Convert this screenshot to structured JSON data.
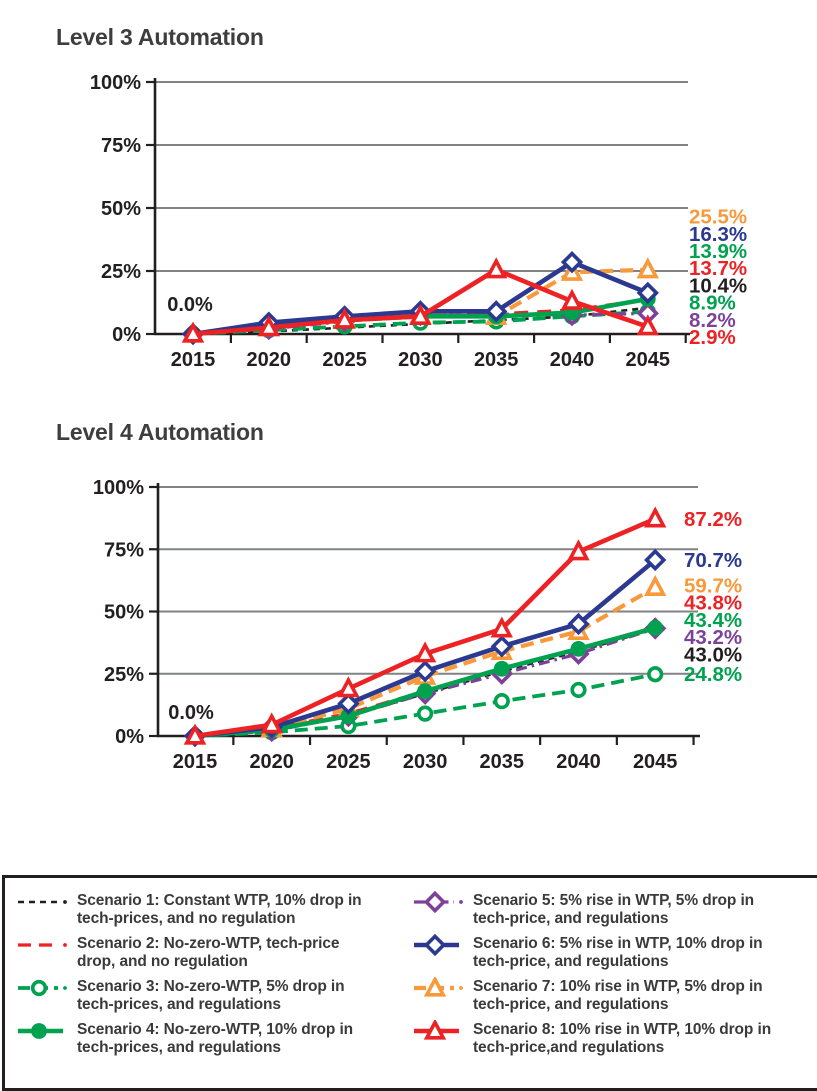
{
  "colors": {
    "black": "#231f20",
    "red": "#ed2224",
    "green": "#00a14f",
    "blue": "#2b3990",
    "purple": "#7d4199",
    "orange": "#f8993b",
    "grid": "#808285",
    "axis": "#231f20",
    "title": "#3e3e40"
  },
  "chart_data": [
    {
      "type": "line",
      "title": "Level 3 Automation",
      "x": [
        2015,
        2020,
        2025,
        2030,
        2035,
        2040,
        2045
      ],
      "ylim": [
        0,
        100
      ],
      "y_ticks": [
        "0%",
        "25%",
        "50%",
        "75%",
        "100%"
      ],
      "grid": "horizontal",
      "legend_position": "bottom-shared",
      "origin_label": "0.0%",
      "series": [
        {
          "name": "Scenario 1",
          "color": "black",
          "style": "dashed",
          "dash": "6 5",
          "marker": "none",
          "width": 2.6,
          "values": [
            0,
            1.0,
            2.5,
            4.0,
            5.5,
            7.0,
            10.4
          ],
          "end_label": "10.4%"
        },
        {
          "name": "Scenario 2",
          "color": "red",
          "style": "dashed",
          "dash": "14 9",
          "marker": "none",
          "width": 3.2,
          "values": [
            0,
            2.5,
            5.5,
            7.0,
            8.0,
            9.5,
            13.7
          ],
          "end_label": "13.7%"
        },
        {
          "name": "Scenario 3",
          "color": "green",
          "style": "dashed",
          "dash": "13 7",
          "marker": "circle-open",
          "width": 3.8,
          "values": [
            0,
            1.5,
            3.0,
            4.5,
            5.0,
            7.0,
            8.9
          ],
          "end_label": "8.9%"
        },
        {
          "name": "Scenario 5",
          "color": "purple",
          "style": "dash-dot",
          "dash": "11 5 2.5 5",
          "marker": "diamond-open",
          "width": 3.2,
          "values": [
            0,
            2.0,
            5.0,
            7.5,
            8.0,
            7.5,
            8.2
          ],
          "end_label": "8.2%"
        },
        {
          "name": "Scenario 7",
          "color": "orange",
          "style": "dashed",
          "dash": "13 7",
          "marker": "triangle-open",
          "width": 4.2,
          "values": [
            0,
            2.5,
            6.0,
            7.5,
            7.0,
            24.5,
            25.5
          ],
          "end_label": "25.5%"
        },
        {
          "name": "Scenario 4",
          "color": "green",
          "style": "solid",
          "dash": null,
          "marker": "circle-filled",
          "width": 4.6,
          "values": [
            0,
            3.5,
            5.5,
            7.0,
            7.0,
            8.5,
            13.9
          ],
          "end_label": "13.9%"
        },
        {
          "name": "Scenario 6",
          "color": "blue",
          "style": "solid",
          "dash": null,
          "marker": "diamond-open",
          "width": 4.6,
          "values": [
            0,
            4.5,
            7.0,
            9.0,
            9.0,
            28.5,
            16.3
          ],
          "end_label": "16.3%"
        },
        {
          "name": "Scenario 8",
          "color": "red",
          "style": "solid",
          "dash": null,
          "marker": "triangle-open",
          "width": 4.6,
          "values": [
            0,
            2.5,
            5.5,
            7.0,
            25.5,
            13.0,
            2.9
          ],
          "end_label": "2.9%"
        }
      ]
    },
    {
      "type": "line",
      "title": "Level 4 Automation",
      "x": [
        2015,
        2020,
        2025,
        2030,
        2035,
        2040,
        2045
      ],
      "ylim": [
        0,
        100
      ],
      "y_ticks": [
        "0%",
        "25%",
        "50%",
        "75%",
        "100%"
      ],
      "grid": "horizontal",
      "legend_position": "bottom-shared",
      "origin_label": "0.0%",
      "series": [
        {
          "name": "Scenario 1",
          "color": "black",
          "style": "dashed",
          "dash": "6 5",
          "marker": "none",
          "width": 2.6,
          "values": [
            0,
            2.0,
            8.0,
            17.0,
            26.0,
            34.0,
            43.0
          ],
          "end_label": "43.0%"
        },
        {
          "name": "Scenario 2",
          "color": "red",
          "style": "dashed",
          "dash": "14 9",
          "marker": "none",
          "width": 3.2,
          "values": [
            0,
            3.0,
            9.0,
            18.0,
            27.0,
            35.0,
            43.8
          ],
          "end_label": "43.8%"
        },
        {
          "name": "Scenario 3",
          "color": "green",
          "style": "dashed",
          "dash": "13 7",
          "marker": "circle-open",
          "width": 3.8,
          "values": [
            0,
            1.5,
            4.0,
            9.0,
            14.0,
            18.5,
            24.8
          ],
          "end_label": "24.8%"
        },
        {
          "name": "Scenario 5",
          "color": "purple",
          "style": "dash-dot",
          "dash": "11 5 2.5 5",
          "marker": "diamond-open",
          "width": 3.2,
          "values": [
            0,
            2.0,
            8.0,
            17.0,
            25.0,
            33.0,
            43.2
          ],
          "end_label": "43.2%"
        },
        {
          "name": "Scenario 7",
          "color": "orange",
          "style": "dashed",
          "dash": "13 7",
          "marker": "triangle-open",
          "width": 4.2,
          "values": [
            0,
            3.0,
            11.0,
            24.0,
            34.0,
            42.0,
            59.7
          ],
          "end_label": "59.7%"
        },
        {
          "name": "Scenario 4",
          "color": "green",
          "style": "solid",
          "dash": null,
          "marker": "circle-filled",
          "width": 4.6,
          "values": [
            0,
            2.5,
            8.0,
            18.0,
            27.0,
            35.0,
            43.4
          ],
          "end_label": "43.4%"
        },
        {
          "name": "Scenario 6",
          "color": "blue",
          "style": "solid",
          "dash": null,
          "marker": "diamond-open",
          "width": 4.6,
          "values": [
            0,
            3.5,
            13.0,
            26.0,
            36.0,
            45.0,
            70.7
          ],
          "end_label": "70.7%"
        },
        {
          "name": "Scenario 8",
          "color": "red",
          "style": "solid",
          "dash": null,
          "marker": "triangle-open",
          "width": 4.6,
          "values": [
            0,
            4.5,
            19.0,
            33.0,
            43.0,
            74.0,
            87.2
          ],
          "end_label": "87.2%"
        }
      ]
    }
  ],
  "legend": {
    "items": [
      {
        "label": "Scenario 1: Constant WTP, 10% drop in tech-prices, and no regulation",
        "color": "black",
        "style": "dashed",
        "dash": "6 5",
        "marker": "none",
        "width": 2.6
      },
      {
        "label": "Scenario 2: No-zero-WTP, tech-price drop, and no regulation",
        "color": "red",
        "style": "dashed",
        "dash": "13 8",
        "marker": "none",
        "width": 3.2
      },
      {
        "label": "Scenario 3: No-zero-WTP, 5% drop in tech-prices, and regulations",
        "color": "green",
        "style": "dashed",
        "dash": "12 6",
        "marker": "circle-open",
        "width": 3.8
      },
      {
        "label": "Scenario 4: No-zero-WTP, 10% drop in tech-prices, and regulations",
        "color": "green",
        "style": "solid",
        "dash": null,
        "marker": "circle-filled",
        "width": 4.6
      },
      {
        "label": "Scenario 5: 5% rise in WTP, 5% drop in tech-price, and regulations",
        "color": "purple",
        "style": "dash-dot",
        "dash": "11 5 2.5 5",
        "marker": "diamond-open",
        "width": 3.2
      },
      {
        "label": "Scenario 6: 5% rise in WTP, 10% drop in tech-price, and regulations",
        "color": "blue",
        "style": "solid",
        "dash": null,
        "marker": "diamond-open",
        "width": 4.6
      },
      {
        "label": "Scenario 7: 10% rise in WTP, 5% drop in tech-price, and regulations",
        "color": "orange",
        "style": "dashed",
        "dash": "12 6",
        "marker": "triangle-open",
        "width": 4.2
      },
      {
        "label": "Scenario 8: 10% rise in WTP, 10% drop in tech-price,and regulations",
        "color": "red",
        "style": "solid",
        "dash": null,
        "marker": "triangle-open",
        "width": 4.6
      }
    ]
  }
}
